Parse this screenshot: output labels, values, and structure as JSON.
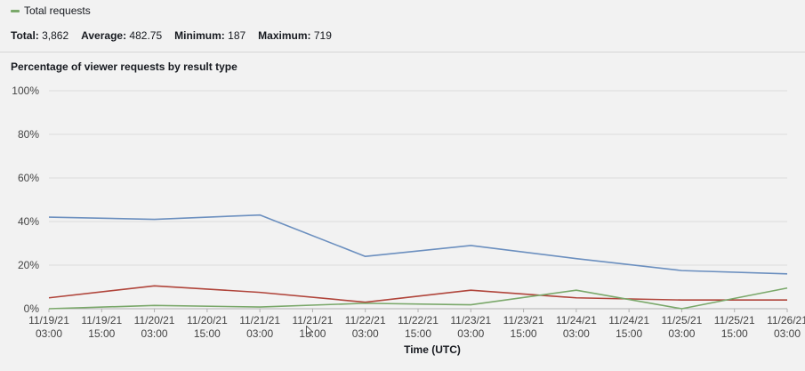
{
  "legend": {
    "label": "Total requests",
    "color": "#7aa86a"
  },
  "stats": {
    "total_label": "Total:",
    "total_value": "3,862",
    "average_label": "Average:",
    "average_value": "482.75",
    "minimum_label": "Minimum:",
    "minimum_value": "187",
    "maximum_label": "Maximum:",
    "maximum_value": "719"
  },
  "chart_title": "Percentage of viewer requests by result type",
  "chart_data": {
    "type": "line",
    "title": "Percentage of viewer requests by result type",
    "xlabel": "Time (UTC)",
    "ylabel": "",
    "ylim": [
      0,
      100
    ],
    "y_ticks": [
      "0%",
      "20%",
      "40%",
      "60%",
      "80%",
      "100%"
    ],
    "y_tick_values": [
      0,
      20,
      40,
      60,
      80,
      100
    ],
    "grid": true,
    "categories": [
      [
        "11/19/21",
        "03:00"
      ],
      [
        "11/19/21",
        "15:00"
      ],
      [
        "11/20/21",
        "03:00"
      ],
      [
        "11/20/21",
        "15:00"
      ],
      [
        "11/21/21",
        "03:00"
      ],
      [
        "11/21/21",
        "15:00"
      ],
      [
        "11/22/21",
        "03:00"
      ],
      [
        "11/22/21",
        "15:00"
      ],
      [
        "11/23/21",
        "03:00"
      ],
      [
        "11/23/21",
        "15:00"
      ],
      [
        "11/24/21",
        "03:00"
      ],
      [
        "11/24/21",
        "15:00"
      ],
      [
        "11/25/21",
        "03:00"
      ],
      [
        "11/25/21",
        "15:00"
      ],
      [
        "11/26/21",
        "03:00"
      ]
    ],
    "series": [
      {
        "color": "#6b8fbf",
        "values": [
          42,
          null,
          41,
          null,
          43,
          null,
          24,
          null,
          29,
          null,
          23,
          null,
          17.5,
          null,
          16
        ]
      },
      {
        "color": "#b0443a",
        "values": [
          5,
          null,
          10.5,
          null,
          7.5,
          null,
          3,
          null,
          8.5,
          null,
          5,
          null,
          4,
          null,
          4
        ]
      },
      {
        "color": "#7aa86a",
        "values": [
          0,
          null,
          1.5,
          null,
          0.8,
          null,
          2.5,
          null,
          1.8,
          null,
          8.5,
          null,
          0,
          null,
          9.5
        ]
      }
    ]
  }
}
